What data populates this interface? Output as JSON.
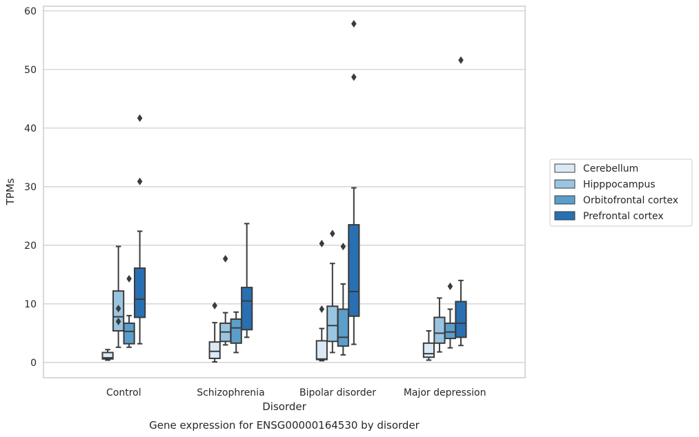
{
  "chart_data": {
    "type": "box",
    "title": "Gene expression for ENSG00000164530 by disorder",
    "xlabel": "Disorder",
    "ylabel": "TPMs",
    "ylim": [
      -2.6,
      60.8
    ],
    "yticks": [
      0,
      10,
      20,
      30,
      40,
      50,
      60
    ],
    "grid": "horizontal",
    "legend_position": "right",
    "categories": [
      "Control",
      "Schizophrenia",
      "Bipolar disorder",
      "Major depression"
    ],
    "series": [
      {
        "name": "Cerebellum",
        "color": "#dbe9f6",
        "boxes": [
          {
            "whisker_low": 0.4,
            "q1": 0.6,
            "median": 0.8,
            "q3": 1.7,
            "whisker_high": 2.2,
            "outliers": []
          },
          {
            "whisker_low": 0.1,
            "q1": 0.7,
            "median": 1.9,
            "q3": 3.5,
            "whisker_high": 6.8,
            "outliers": [
              9.7
            ]
          },
          {
            "whisker_low": 0.3,
            "q1": 0.5,
            "median": 0.6,
            "q3": 3.7,
            "whisker_high": 5.8,
            "outliers": [
              9.1,
              20.3
            ]
          },
          {
            "whisker_low": 0.4,
            "q1": 0.9,
            "median": 1.5,
            "q3": 3.3,
            "whisker_high": 5.4,
            "outliers": []
          }
        ]
      },
      {
        "name": "Hipppocampus",
        "color": "#9ac5e0",
        "boxes": [
          {
            "whisker_low": 2.6,
            "q1": 5.4,
            "median": 7.8,
            "q3": 12.2,
            "whisker_high": 19.8,
            "outliers": [
              7.0,
              9.2
            ]
          },
          {
            "whisker_low": 3.0,
            "q1": 3.6,
            "median": 5.2,
            "q3": 6.7,
            "whisker_high": 8.5,
            "outliers": [
              17.7
            ]
          },
          {
            "whisker_low": 1.7,
            "q1": 3.6,
            "median": 6.3,
            "q3": 9.6,
            "whisker_high": 16.9,
            "outliers": [
              22.0
            ]
          },
          {
            "whisker_low": 1.8,
            "q1": 3.3,
            "median": 5.0,
            "q3": 7.7,
            "whisker_high": 11.0,
            "outliers": []
          }
        ]
      },
      {
        "name": "Orbitofrontal cortex",
        "color": "#5b9ec9",
        "boxes": [
          {
            "whisker_low": 2.6,
            "q1": 3.2,
            "median": 5.3,
            "q3": 6.7,
            "whisker_high": 8.0,
            "outliers": [
              14.3
            ]
          },
          {
            "whisker_low": 1.7,
            "q1": 3.3,
            "median": 5.9,
            "q3": 7.4,
            "whisker_high": 8.6,
            "outliers": []
          },
          {
            "whisker_low": 1.3,
            "q1": 2.8,
            "median": 4.3,
            "q3": 9.1,
            "whisker_high": 13.4,
            "outliers": [
              19.8
            ]
          },
          {
            "whisker_low": 2.5,
            "q1": 4.1,
            "median": 5.2,
            "q3": 6.7,
            "whisker_high": 9.1,
            "outliers": [
              13.0
            ]
          }
        ]
      },
      {
        "name": "Prefrontal cortex",
        "color": "#2870b1",
        "boxes": [
          {
            "whisker_low": 3.2,
            "q1": 7.7,
            "median": 10.8,
            "q3": 16.1,
            "whisker_high": 22.4,
            "outliers": [
              30.9,
              41.7
            ]
          },
          {
            "whisker_low": 4.3,
            "q1": 5.6,
            "median": 10.5,
            "q3": 12.8,
            "whisker_high": 23.7,
            "outliers": []
          },
          {
            "whisker_low": 3.1,
            "q1": 7.9,
            "median": 12.1,
            "q3": 23.5,
            "whisker_high": 29.8,
            "outliers": [
              48.7,
              57.8
            ]
          },
          {
            "whisker_low": 2.9,
            "q1": 4.3,
            "median": 6.7,
            "q3": 10.4,
            "whisker_high": 14.0,
            "outliers": [
              51.6
            ]
          }
        ]
      }
    ]
  }
}
